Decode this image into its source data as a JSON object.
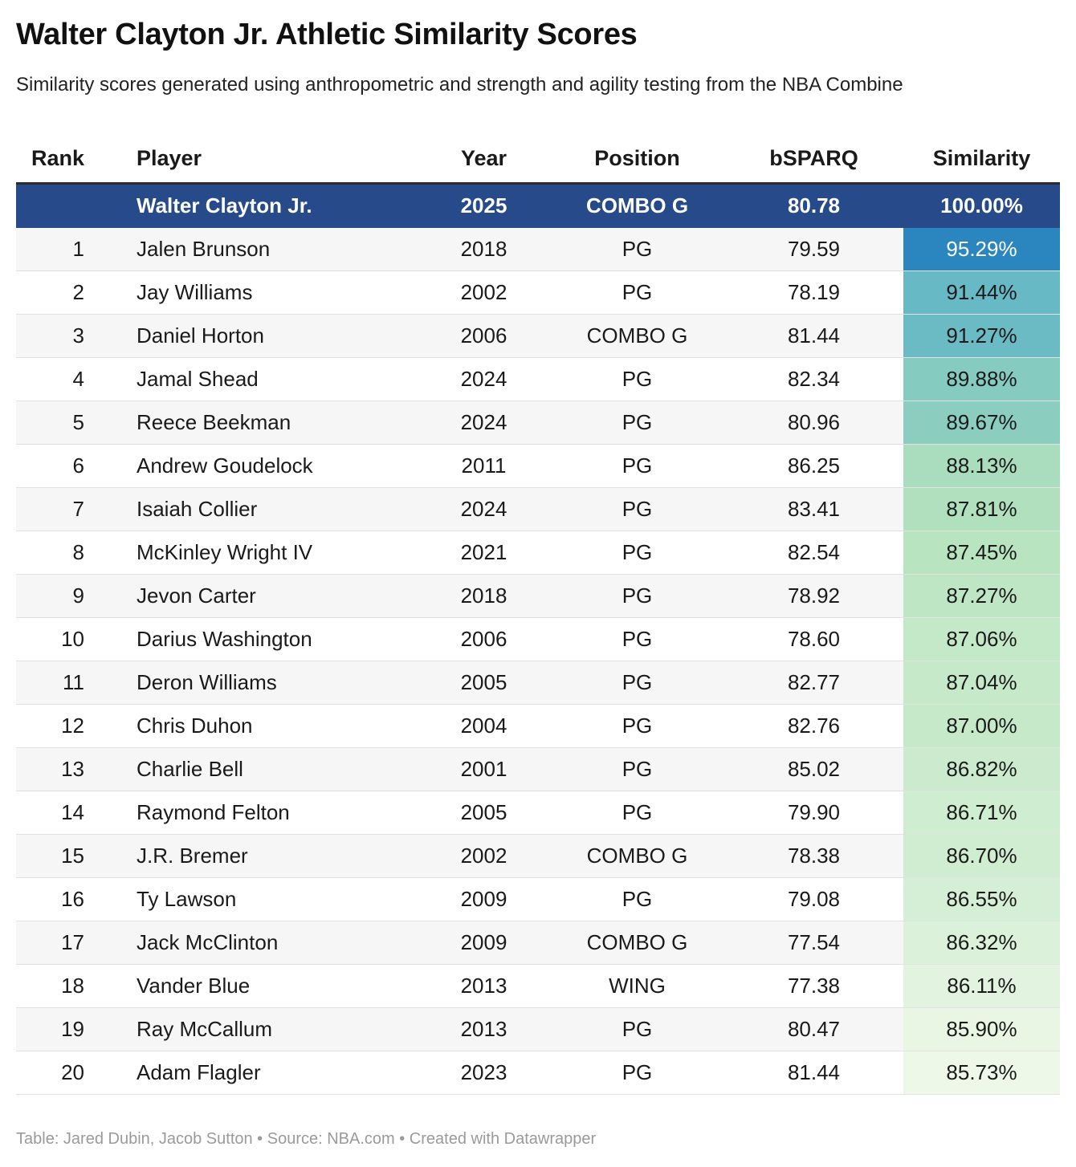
{
  "title": "Walter Clayton Jr. Athletic Similarity Scores",
  "subtitle": "Similarity scores generated using anthropometric and strength and agility testing from the NBA Combine",
  "footer": "Table: Jared Dubin, Jacob Sutton • Source: NBA.com • Created with Datawrapper",
  "colors": {
    "featured_row": "#264a8a",
    "heat_low": "#eef8e8",
    "heat_mid": "#b5e3bd",
    "heat_high": "#2b86c0"
  },
  "chart_data": {
    "type": "table",
    "columns": [
      "Rank",
      "Player",
      "Year",
      "Position",
      "bSPARQ",
      "Similarity"
    ],
    "featured": {
      "rank": "",
      "player": "Walter Clayton Jr.",
      "year": "2025",
      "position": "COMBO G",
      "bsparq": "80.78",
      "similarity": "100.00%"
    },
    "rows": [
      {
        "rank": "1",
        "player": "Jalen Brunson",
        "year": "2018",
        "position": "PG",
        "bsparq": "79.59",
        "similarity": "95.29%"
      },
      {
        "rank": "2",
        "player": "Jay Williams",
        "year": "2002",
        "position": "PG",
        "bsparq": "78.19",
        "similarity": "91.44%"
      },
      {
        "rank": "3",
        "player": "Daniel Horton",
        "year": "2006",
        "position": "COMBO G",
        "bsparq": "81.44",
        "similarity": "91.27%"
      },
      {
        "rank": "4",
        "player": "Jamal Shead",
        "year": "2024",
        "position": "PG",
        "bsparq": "82.34",
        "similarity": "89.88%"
      },
      {
        "rank": "5",
        "player": "Reece Beekman",
        "year": "2024",
        "position": "PG",
        "bsparq": "80.96",
        "similarity": "89.67%"
      },
      {
        "rank": "6",
        "player": "Andrew Goudelock",
        "year": "2011",
        "position": "PG",
        "bsparq": "86.25",
        "similarity": "88.13%"
      },
      {
        "rank": "7",
        "player": "Isaiah Collier",
        "year": "2024",
        "position": "PG",
        "bsparq": "83.41",
        "similarity": "87.81%"
      },
      {
        "rank": "8",
        "player": "McKinley Wright IV",
        "year": "2021",
        "position": "PG",
        "bsparq": "82.54",
        "similarity": "87.45%"
      },
      {
        "rank": "9",
        "player": "Jevon Carter",
        "year": "2018",
        "position": "PG",
        "bsparq": "78.92",
        "similarity": "87.27%"
      },
      {
        "rank": "10",
        "player": "Darius Washington",
        "year": "2006",
        "position": "PG",
        "bsparq": "78.60",
        "similarity": "87.06%"
      },
      {
        "rank": "11",
        "player": "Deron Williams",
        "year": "2005",
        "position": "PG",
        "bsparq": "82.77",
        "similarity": "87.04%"
      },
      {
        "rank": "12",
        "player": "Chris Duhon",
        "year": "2004",
        "position": "PG",
        "bsparq": "82.76",
        "similarity": "87.00%"
      },
      {
        "rank": "13",
        "player": "Charlie Bell",
        "year": "2001",
        "position": "PG",
        "bsparq": "85.02",
        "similarity": "86.82%"
      },
      {
        "rank": "14",
        "player": "Raymond Felton",
        "year": "2005",
        "position": "PG",
        "bsparq": "79.90",
        "similarity": "86.71%"
      },
      {
        "rank": "15",
        "player": "J.R. Bremer",
        "year": "2002",
        "position": "COMBO G",
        "bsparq": "78.38",
        "similarity": "86.70%"
      },
      {
        "rank": "16",
        "player": "Ty Lawson",
        "year": "2009",
        "position": "PG",
        "bsparq": "79.08",
        "similarity": "86.55%"
      },
      {
        "rank": "17",
        "player": "Jack McClinton",
        "year": "2009",
        "position": "COMBO G",
        "bsparq": "77.54",
        "similarity": "86.32%"
      },
      {
        "rank": "18",
        "player": "Vander Blue",
        "year": "2013",
        "position": "WING",
        "bsparq": "77.38",
        "similarity": "86.11%"
      },
      {
        "rank": "19",
        "player": "Ray McCallum",
        "year": "2013",
        "position": "PG",
        "bsparq": "80.47",
        "similarity": "85.90%"
      },
      {
        "rank": "20",
        "player": "Adam Flagler",
        "year": "2023",
        "position": "PG",
        "bsparq": "81.44",
        "similarity": "85.73%"
      }
    ]
  }
}
